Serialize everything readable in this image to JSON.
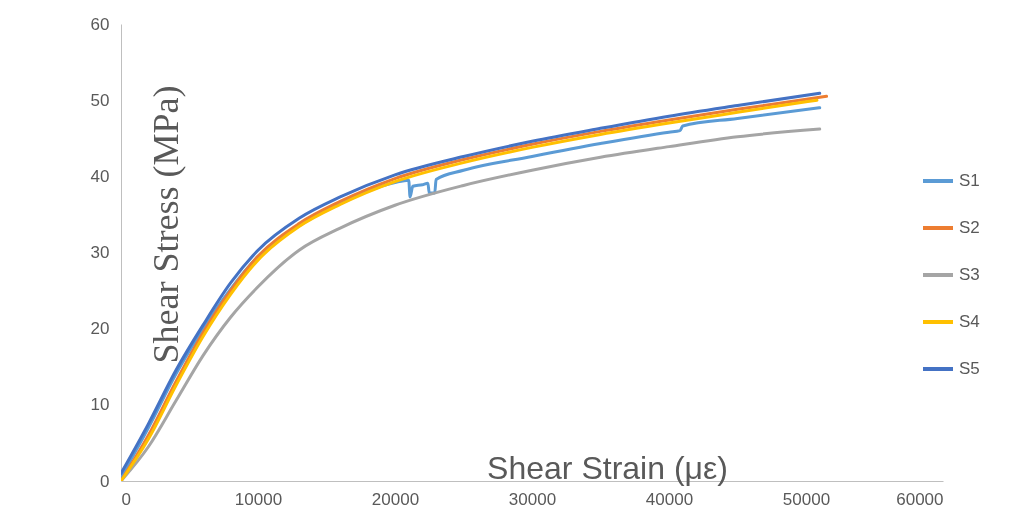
{
  "chart_data": {
    "type": "line",
    "xlabel": "Shear Strain (με)",
    "ylabel": "Shear Stress (MPa)",
    "xlim": [
      0,
      60000
    ],
    "ylim": [
      0,
      60
    ],
    "xticks": [
      0,
      10000,
      20000,
      30000,
      40000,
      50000,
      60000
    ],
    "yticks": [
      0,
      10,
      20,
      30,
      40,
      50,
      60
    ],
    "grid": false,
    "legend": "right",
    "marker": "none",
    "line_style": "solid",
    "series": [
      {
        "name": "S1",
        "color": "#5b9bd5",
        "x": [
          0,
          2000,
          4000,
          6000,
          8000,
          10000,
          13000,
          16000,
          20000,
          21000,
          21100,
          21300,
          22000,
          22400,
          22500,
          22900,
          23000,
          25000,
          30000,
          35000,
          40000,
          40800,
          41000,
          45000,
          51000
        ],
        "values": [
          0.5,
          7,
          14,
          20,
          25.2,
          29.5,
          33.5,
          36.4,
          39.2,
          39.5,
          37.3,
          38.7,
          38.9,
          39.1,
          37.8,
          37.8,
          39.6,
          40.8,
          42.6,
          44.3,
          45.8,
          46.0,
          46.6,
          47.6,
          49.0
        ]
      },
      {
        "name": "S2",
        "color": "#ed7d31",
        "x": [
          0,
          2000,
          4000,
          6000,
          8000,
          10000,
          13000,
          16000,
          20000,
          25000,
          30000,
          35000,
          40000,
          45000,
          51500
        ],
        "values": [
          0,
          6,
          13,
          19.5,
          25,
          29.5,
          33.8,
          36.7,
          39.7,
          42.2,
          44.2,
          45.9,
          47.4,
          48.8,
          50.5
        ]
      },
      {
        "name": "S3",
        "color": "#a5a5a5",
        "x": [
          0,
          2000,
          4000,
          6000,
          8000,
          10000,
          13000,
          16000,
          20000,
          25000,
          30000,
          35000,
          40000,
          45000,
          51000
        ],
        "values": [
          0,
          4.5,
          10.5,
          16.5,
          21.5,
          25.5,
          30.3,
          33.2,
          36.2,
          38.8,
          40.8,
          42.5,
          43.9,
          45.2,
          46.2
        ]
      },
      {
        "name": "S4",
        "color": "#ffc000",
        "x": [
          0,
          2000,
          4000,
          6000,
          8000,
          10000,
          13000,
          16000,
          20000,
          25000,
          30000,
          35000,
          40000,
          45000,
          50800
        ],
        "values": [
          0,
          5.5,
          12.5,
          19,
          24.5,
          29,
          33.4,
          36.3,
          39.3,
          41.8,
          43.8,
          45.5,
          47.0,
          48.4,
          50.0
        ]
      },
      {
        "name": "S5",
        "color": "#4472c4",
        "x": [
          0,
          2000,
          4000,
          6000,
          8000,
          10000,
          13000,
          16000,
          20000,
          25000,
          30000,
          35000,
          40000,
          45000,
          51000
        ],
        "values": [
          1,
          7.5,
          14.5,
          20.5,
          26,
          30.3,
          34.5,
          37.3,
          40.2,
          42.6,
          44.6,
          46.3,
          47.9,
          49.3,
          50.9
        ]
      }
    ]
  }
}
